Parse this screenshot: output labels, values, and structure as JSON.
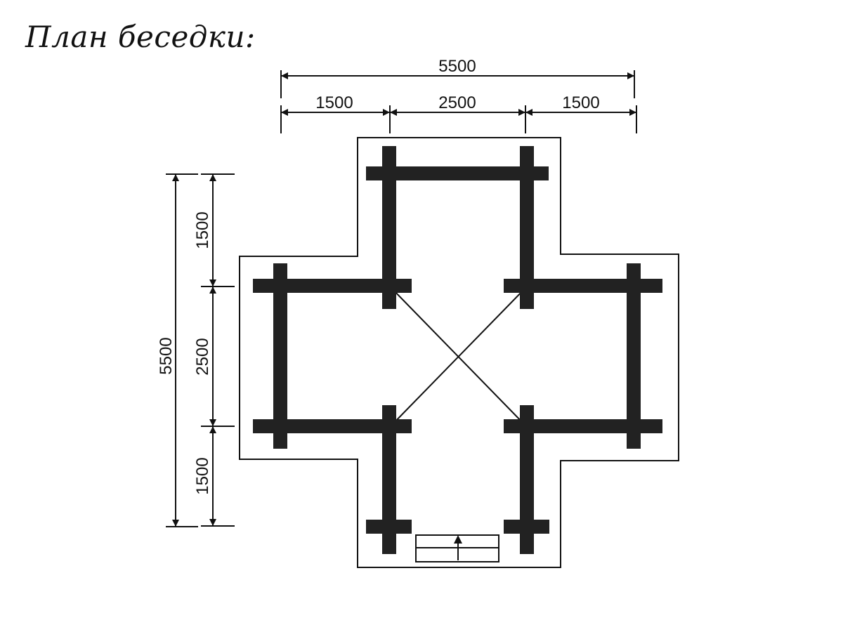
{
  "title": "План беседки:",
  "colors": {
    "timber": "#222222",
    "line": "#111111",
    "background": "#ffffff"
  },
  "dimensions": {
    "top_total": "5500",
    "top_left": "1500",
    "top_middle": "2500",
    "top_right": "1500",
    "left_total": "5500",
    "left_top": "1500",
    "left_middle": "2500",
    "left_bottom": "1500"
  },
  "icons": {
    "entrance_arrow": "arrow-up-icon"
  }
}
